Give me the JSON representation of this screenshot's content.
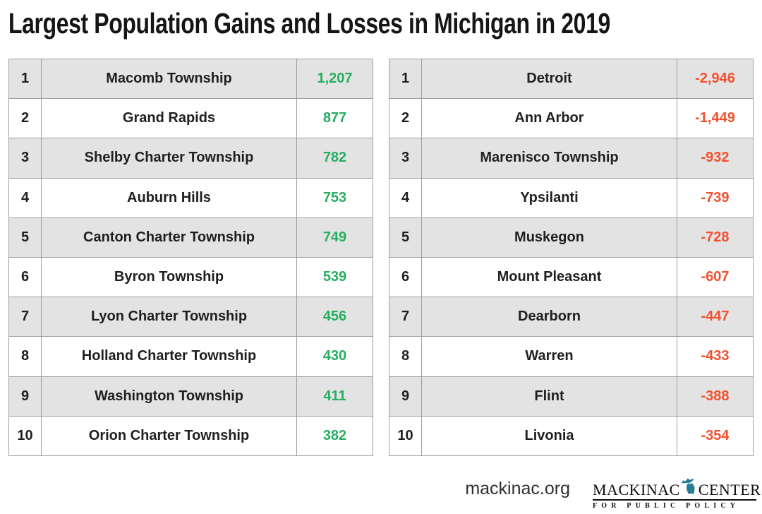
{
  "title": "Largest Population Gains and Losses in Michigan in 2019",
  "colors": {
    "gain": "#27ae60",
    "loss": "#f4502e",
    "row_alt_gray": "#e3e3e3",
    "row_white": "#ffffff",
    "cell_border": "#9f9f9f",
    "title_text": "#151515",
    "logo_teal": "#2a7d97"
  },
  "chart_data": {
    "type": "table",
    "title": "Largest Population Gains and Losses in Michigan in 2019",
    "layout": "two side-by-side ranked tables, no column headers, alternating gray/white rows",
    "tables": [
      {
        "name": "gains",
        "value_color": "#27ae60",
        "rows": [
          [
            1,
            "Macomb Township",
            1207
          ],
          [
            2,
            "Grand Rapids",
            877
          ],
          [
            3,
            "Shelby Charter Township",
            782
          ],
          [
            4,
            "Auburn Hills",
            753
          ],
          [
            5,
            "Canton Charter Township",
            749
          ],
          [
            6,
            "Byron Township",
            539
          ],
          [
            7,
            "Lyon Charter Township",
            456
          ],
          [
            8,
            "Holland Charter Township",
            430
          ],
          [
            9,
            "Washington Township",
            411
          ],
          [
            10,
            "Orion Charter Township",
            382
          ]
        ]
      },
      {
        "name": "losses",
        "value_color": "#f4502e",
        "rows": [
          [
            1,
            "Detroit",
            -2946
          ],
          [
            2,
            "Ann Arbor",
            -1449
          ],
          [
            3,
            "Marenisco Township",
            -932
          ],
          [
            4,
            "Ypsilanti",
            -739
          ],
          [
            5,
            "Muskegon",
            -728
          ],
          [
            6,
            "Mount Pleasant",
            -607
          ],
          [
            7,
            "Dearborn",
            -447
          ],
          [
            8,
            "Warren",
            -433
          ],
          [
            9,
            "Flint",
            -388
          ],
          [
            10,
            "Livonia",
            -354
          ]
        ]
      }
    ]
  },
  "footer": {
    "website": "mackinac.org",
    "logo": {
      "line1_left": "MACKINAC",
      "line1_right": "CENTER",
      "line2": "FOR PUBLIC POLICY"
    }
  }
}
